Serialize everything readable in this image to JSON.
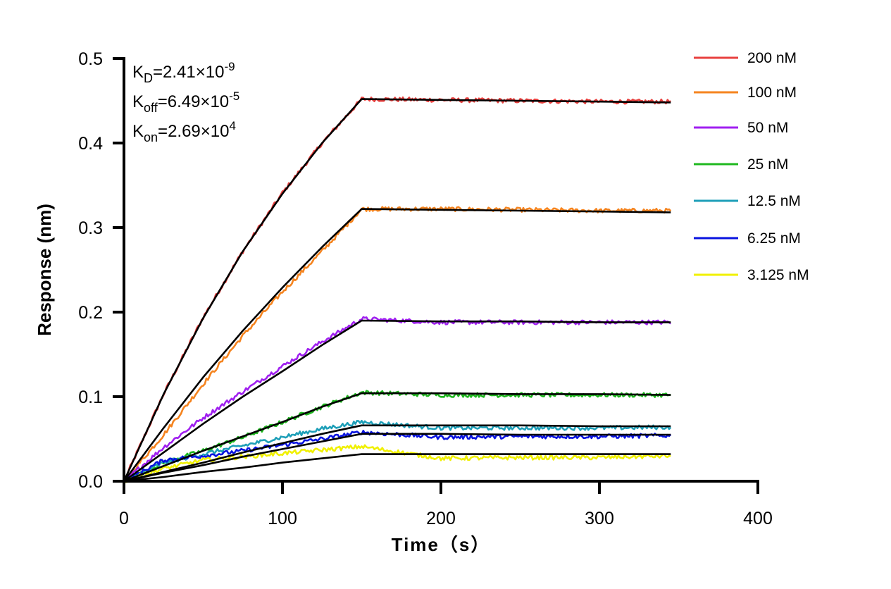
{
  "chart_data": {
    "type": "line",
    "title": "",
    "xlabel": "Time（s）",
    "ylabel": "Response (nm)",
    "xlim": [
      0,
      400
    ],
    "ylim": [
      0,
      0.5
    ],
    "xticks": [
      "0",
      "100",
      "200",
      "300",
      "400"
    ],
    "yticks": [
      "0.0",
      "0.1",
      "0.2",
      "0.3",
      "0.4",
      "0.5"
    ],
    "grid": false,
    "legend_position": "right",
    "annotations": {
      "kd": {
        "label": "K",
        "sub": "D",
        "value": "=2.41×10",
        "exp": "-9"
      },
      "koff": {
        "label": "K",
        "sub": "off",
        "value": "=6.49×10",
        "exp": "-5"
      },
      "kon": {
        "label": "K",
        "sub": "on",
        "value": "=2.69×10",
        "exp": "4"
      }
    },
    "fit_color": "#000000",
    "x": [
      0,
      25,
      50,
      75,
      100,
      125,
      150,
      200,
      250,
      300,
      345
    ],
    "series": [
      {
        "name": "200 nM",
        "color": "#e8413f",
        "observed": [
          0,
          0.103,
          0.194,
          0.272,
          0.341,
          0.4,
          0.452,
          0.451,
          0.45,
          0.449,
          0.449
        ],
        "fit": [
          0,
          0.103,
          0.193,
          0.272,
          0.34,
          0.4,
          0.452,
          0.451,
          0.45,
          0.449,
          0.448
        ]
      },
      {
        "name": "100 nM",
        "color": "#f5841f",
        "observed": [
          0,
          0.055,
          0.115,
          0.172,
          0.224,
          0.272,
          0.322,
          0.322,
          0.321,
          0.32,
          0.32
        ],
        "fit": [
          0,
          0.063,
          0.123,
          0.178,
          0.229,
          0.277,
          0.322,
          0.321,
          0.32,
          0.319,
          0.318
        ]
      },
      {
        "name": "50 nM",
        "color": "#a020f0",
        "observed": [
          0,
          0.04,
          0.075,
          0.106,
          0.136,
          0.165,
          0.192,
          0.188,
          0.188,
          0.188,
          0.188
        ],
        "fit": [
          0,
          0.034,
          0.068,
          0.1,
          0.13,
          0.161,
          0.19,
          0.189,
          0.189,
          0.188,
          0.188
        ]
      },
      {
        "name": "25 nM",
        "color": "#1fb81f",
        "observed": [
          0,
          0.022,
          0.036,
          0.052,
          0.07,
          0.088,
          0.105,
          0.102,
          0.102,
          0.102,
          0.102
        ],
        "fit": [
          0,
          0.018,
          0.036,
          0.053,
          0.07,
          0.088,
          0.104,
          0.104,
          0.103,
          0.103,
          0.102
        ]
      },
      {
        "name": "12.5 nM",
        "color": "#1e9fb8",
        "observed": [
          0,
          0.022,
          0.032,
          0.042,
          0.052,
          0.062,
          0.07,
          0.063,
          0.063,
          0.063,
          0.064
        ],
        "fit": [
          0,
          0.011,
          0.022,
          0.034,
          0.045,
          0.056,
          0.066,
          0.066,
          0.066,
          0.065,
          0.065
        ]
      },
      {
        "name": "6.25 nM",
        "color": "#0a14e0",
        "observed": [
          0,
          0.025,
          0.03,
          0.036,
          0.043,
          0.05,
          0.058,
          0.052,
          0.053,
          0.053,
          0.054
        ],
        "fit": [
          0,
          0.01,
          0.019,
          0.029,
          0.038,
          0.047,
          0.056,
          0.056,
          0.055,
          0.055,
          0.055
        ]
      },
      {
        "name": "3.125 nM",
        "color": "#f0f000",
        "observed": [
          0,
          0.015,
          0.025,
          0.029,
          0.033,
          0.037,
          0.041,
          0.027,
          0.028,
          0.028,
          0.03
        ],
        "fit": [
          0,
          0.005,
          0.011,
          0.016,
          0.022,
          0.027,
          0.032,
          0.032,
          0.032,
          0.032,
          0.032
        ]
      }
    ]
  }
}
